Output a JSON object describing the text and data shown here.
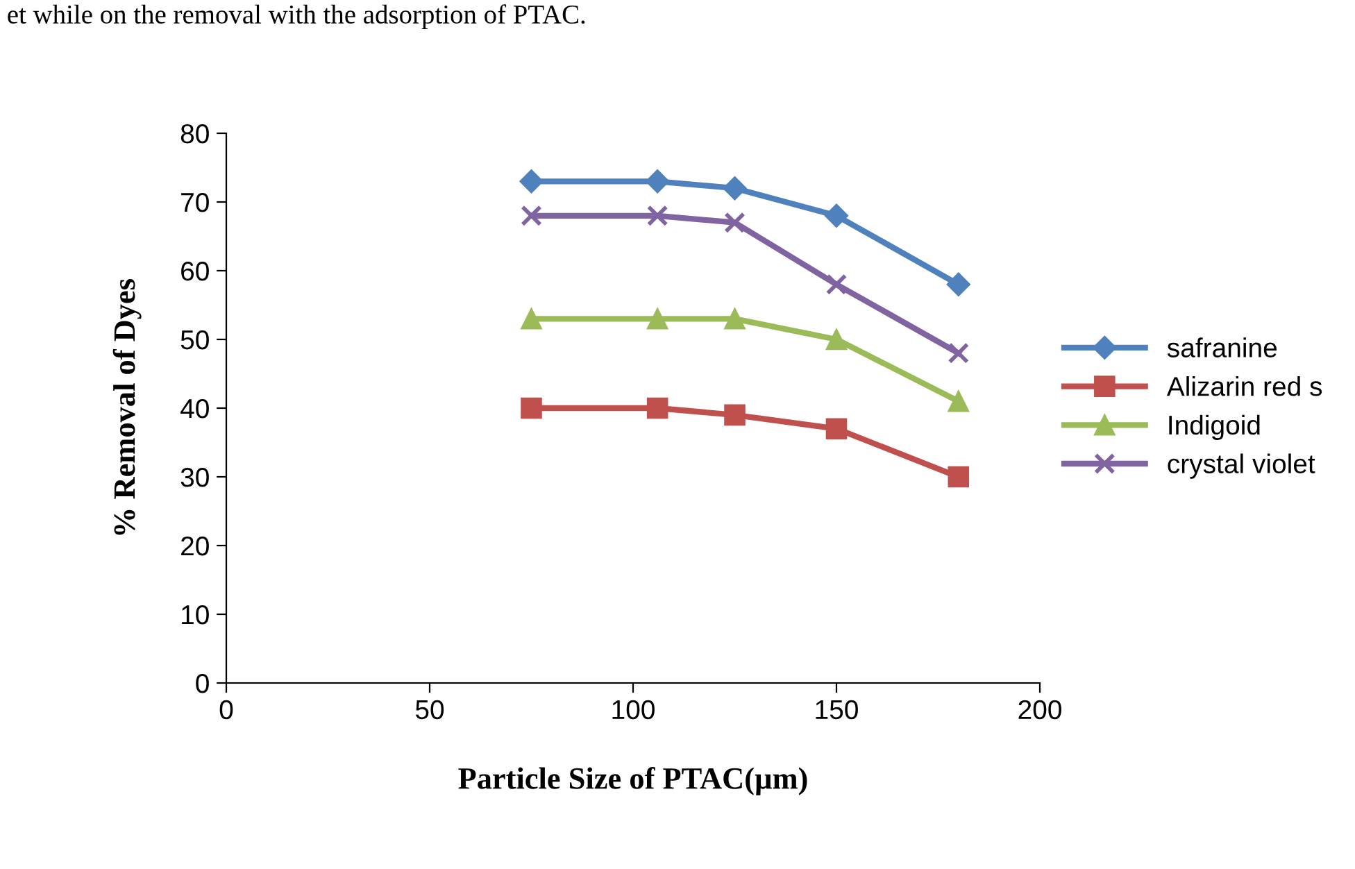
{
  "chart_data": {
    "type": "line",
    "xlabel": "Particle Size of PTAC(µm)",
    "ylabel": "% Removal of Dyes",
    "annotations": [
      "et while on the removal with the adsorption of PTAC."
    ],
    "x": [
      75,
      106,
      125,
      150,
      180
    ],
    "series": [
      {
        "name": "safranine",
        "color": "#4f81bd",
        "marker": "diamond",
        "values": [
          73,
          73,
          72,
          68,
          58
        ]
      },
      {
        "name": "Alizarin red s",
        "color": "#c0504d",
        "marker": "square",
        "values": [
          40,
          40,
          39,
          37,
          30
        ]
      },
      {
        "name": "Indigoid",
        "color": "#9bbb59",
        "marker": "triangle",
        "values": [
          53,
          53,
          53,
          50,
          41
        ]
      },
      {
        "name": "crystal violet",
        "color": "#8064a2",
        "marker": "cross",
        "values": [
          68,
          68,
          67,
          58,
          48
        ]
      }
    ],
    "xlim": [
      0,
      200
    ],
    "xticks": [
      0,
      50,
      100,
      150,
      200
    ],
    "ylim": [
      0,
      80
    ],
    "yticks": [
      0,
      10,
      20,
      30,
      40,
      50,
      60,
      70,
      80
    ],
    "grid": false,
    "legend": "right",
    "line_style": "solid"
  }
}
